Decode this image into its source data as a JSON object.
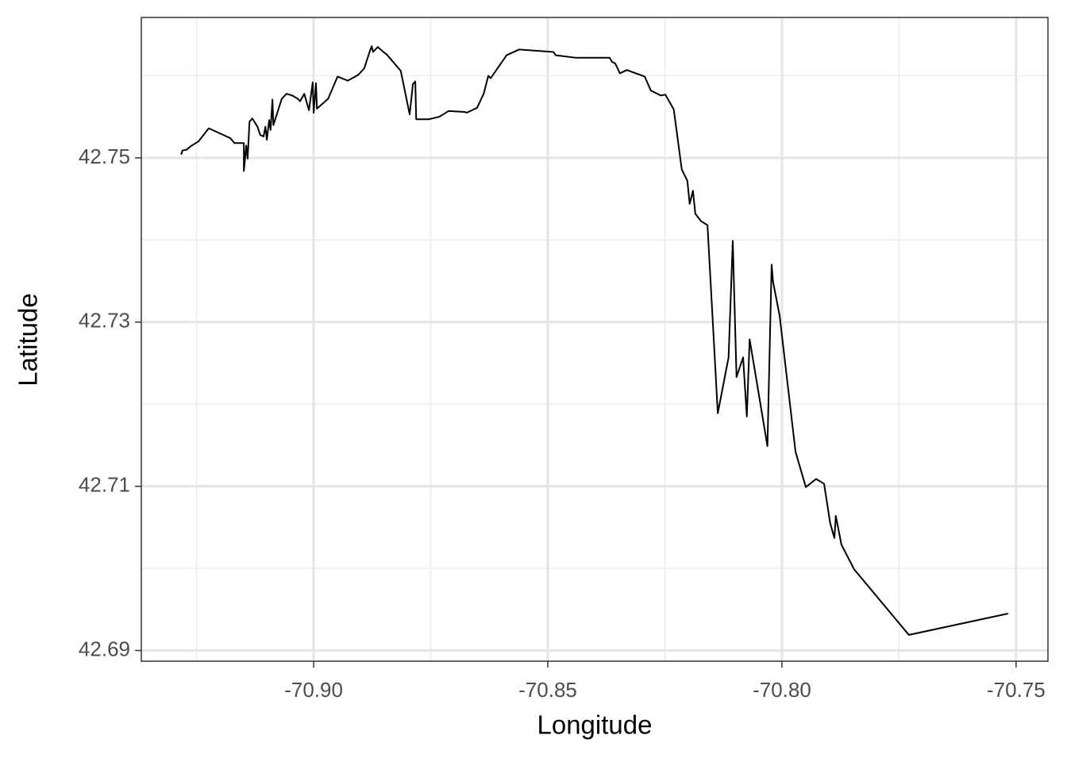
{
  "chart_data": {
    "type": "line",
    "x_label": "Longitude",
    "y_label": "Latitude",
    "x": [
      -70.9283,
      -70.928,
      -70.9271,
      -70.9263,
      -70.9246,
      -70.9224,
      -70.9178,
      -70.9169,
      -70.9149,
      -70.9149,
      -70.9144,
      -70.9141,
      -70.9137,
      -70.9131,
      -70.912,
      -70.9114,
      -70.9107,
      -70.9103,
      -70.91,
      -70.9095,
      -70.9092,
      -70.9088,
      -70.9086,
      -70.9068,
      -70.9058,
      -70.9046,
      -70.9034,
      -70.9029,
      -70.902,
      -70.901,
      -70.9002,
      -70.9,
      -70.8995,
      -70.8993,
      -70.8969,
      -70.8949,
      -70.8927,
      -70.8905,
      -70.8892,
      -70.888,
      -70.8876,
      -70.8873,
      -70.8863,
      -70.8851,
      -70.8844,
      -70.8814,
      -70.8795,
      -70.8788,
      -70.8783,
      -70.8781,
      -70.8754,
      -70.8732,
      -70.8712,
      -70.8678,
      -70.8673,
      -70.8651,
      -70.8637,
      -70.8627,
      -70.8622,
      -70.8588,
      -70.8561,
      -70.8488,
      -70.8483,
      -70.8441,
      -70.8368,
      -70.8363,
      -70.8356,
      -70.8346,
      -70.8331,
      -70.8317,
      -70.8293,
      -70.828,
      -70.8259,
      -70.8249,
      -70.8231,
      -70.8214,
      -70.8202,
      -70.8197,
      -70.819,
      -70.8185,
      -70.8173,
      -70.8159,
      -70.8137,
      -70.8114,
      -70.8105,
      -70.8097,
      -70.8083,
      -70.8075,
      -70.8069,
      -70.8031,
      -70.8022,
      -70.8019,
      -70.8005,
      -70.7971,
      -70.7949,
      -70.7927,
      -70.791,
      -70.7897,
      -70.7888,
      -70.7885,
      -70.7873,
      -70.7846,
      -70.7729,
      -70.7517
    ],
    "y": [
      42.7504,
      42.7509,
      42.751,
      42.7514,
      42.752,
      42.7536,
      42.7524,
      42.7518,
      42.7518,
      42.7484,
      42.7515,
      42.7499,
      42.7544,
      42.7548,
      42.7538,
      42.7528,
      42.7526,
      42.7538,
      42.7522,
      42.7546,
      42.7534,
      42.7571,
      42.754,
      42.7572,
      42.7578,
      42.7576,
      42.7572,
      42.7569,
      42.7578,
      42.7558,
      42.7592,
      42.7555,
      42.7591,
      42.756,
      42.7572,
      42.7599,
      42.7594,
      42.7601,
      42.7609,
      42.763,
      42.7636,
      42.7629,
      42.7635,
      42.7629,
      42.7626,
      42.7606,
      42.7553,
      42.759,
      42.7593,
      42.7547,
      42.7547,
      42.755,
      42.7557,
      42.7556,
      42.7555,
      42.7561,
      42.7578,
      42.76,
      42.7597,
      42.7625,
      42.7632,
      42.7629,
      42.7625,
      42.7622,
      42.7622,
      42.7617,
      42.7615,
      42.7603,
      42.7607,
      42.7604,
      42.7599,
      42.7582,
      42.7576,
      42.7577,
      42.7559,
      42.7486,
      42.7472,
      42.7444,
      42.746,
      42.7432,
      42.7423,
      42.7418,
      42.7189,
      42.7257,
      42.7399,
      42.7233,
      42.7257,
      42.7185,
      42.7279,
      42.7149,
      42.737,
      42.7349,
      42.7308,
      42.7142,
      42.7099,
      42.7109,
      42.7103,
      42.7055,
      42.7037,
      42.7064,
      42.7029,
      42.6999,
      42.6919,
      42.6945
    ],
    "color": "#000000",
    "xlim": [
      -70.9368,
      -70.7432
    ],
    "ylim": [
      42.6887,
      42.7671
    ],
    "xticks": [
      {
        "value": -70.9,
        "label": "-70.90"
      },
      -70.85,
      {
        "value": -70.8,
        "label": "-70.80"
      },
      -70.75
    ],
    "yticks": [
      42.69,
      42.71,
      42.73,
      42.75
    ],
    "xminor": [
      -70.925,
      -70.875,
      -70.825,
      -70.775
    ],
    "yminor": [
      42.7,
      42.72,
      42.74,
      42.76
    ],
    "grid": true
  }
}
